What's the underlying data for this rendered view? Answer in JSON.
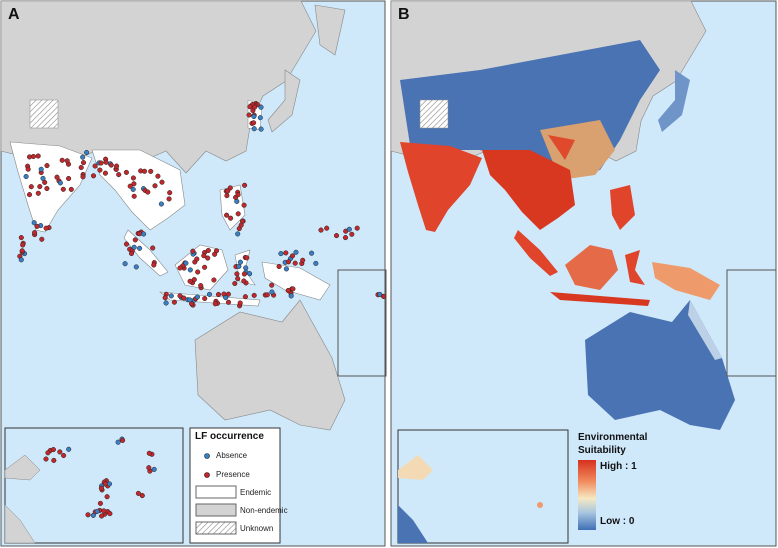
{
  "panels": [
    {
      "letter": "A",
      "legend": {
        "title": "LF occurrence",
        "items": [
          "Absence",
          "Presence",
          "Endemic",
          "Non-endemic",
          "Unknown"
        ]
      }
    },
    {
      "letter": "B",
      "legend": {
        "title": "Environmental Suitability",
        "high": "High : 1",
        "low": "Low : 0"
      }
    }
  ]
}
